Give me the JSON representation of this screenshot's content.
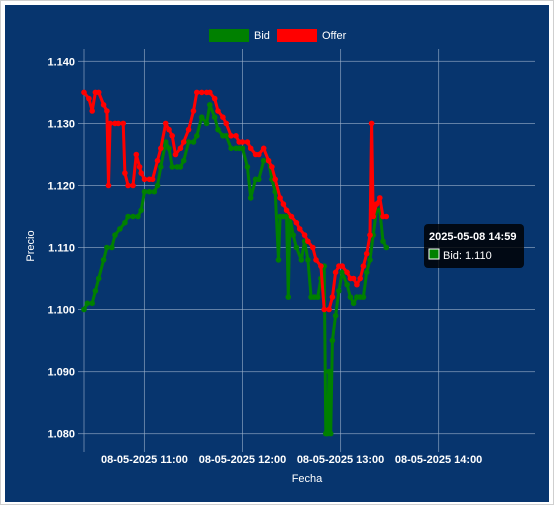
{
  "colors": {
    "background": "#07356e",
    "grid": "#9fb3cc",
    "bid": "#008000",
    "offer": "#ff0000"
  },
  "chart_data": {
    "type": "line",
    "xlabel": "Fecha",
    "ylabel": "Precio",
    "ylim": [
      1.078,
      1.142
    ],
    "y_ticks": [
      "1.080",
      "1.090",
      "1.100",
      "1.110",
      "1.120",
      "1.130",
      "1.140"
    ],
    "x_range": [
      "2025-05-08 10:23",
      "2025-05-08 14:59"
    ],
    "x_ticks": [
      {
        "label": "08-05-2025 11:00",
        "x": "2025-05-08 11:00"
      },
      {
        "label": "08-05-2025 12:00",
        "x": "2025-05-08 12:00"
      },
      {
        "label": "08-05-2025 13:00",
        "x": "2025-05-08 13:00"
      },
      {
        "label": "08-05-2025 14:00",
        "x": "2025-05-08 14:00"
      }
    ],
    "legend_position": "top",
    "grid": true,
    "series": [
      {
        "name": "Bid",
        "color": "#008000",
        "points": [
          [
            "10:23",
            1.1
          ],
          [
            "10:25",
            1.101
          ],
          [
            "10:28",
            1.101
          ],
          [
            "10:30",
            1.103
          ],
          [
            "10:32",
            1.105
          ],
          [
            "10:35",
            1.108
          ],
          [
            "10:37",
            1.11
          ],
          [
            "10:40",
            1.11
          ],
          [
            "10:42",
            1.112
          ],
          [
            "10:45",
            1.113
          ],
          [
            "10:48",
            1.114
          ],
          [
            "10:50",
            1.115
          ],
          [
            "10:53",
            1.115
          ],
          [
            "10:56",
            1.115
          ],
          [
            "10:58",
            1.116
          ],
          [
            "11:00",
            1.119
          ],
          [
            "11:03",
            1.119
          ],
          [
            "11:06",
            1.119
          ],
          [
            "11:08",
            1.12
          ],
          [
            "11:10",
            1.123
          ],
          [
            "11:13",
            1.127
          ],
          [
            "11:15",
            1.126
          ],
          [
            "11:17",
            1.123
          ],
          [
            "11:20",
            1.123
          ],
          [
            "11:22",
            1.123
          ],
          [
            "11:24",
            1.124
          ],
          [
            "11:27",
            1.127
          ],
          [
            "11:30",
            1.127
          ],
          [
            "11:32",
            1.128
          ],
          [
            "11:35",
            1.131
          ],
          [
            "11:38",
            1.13
          ],
          [
            "11:40",
            1.133
          ],
          [
            "11:43",
            1.131
          ],
          [
            "11:45",
            1.129
          ],
          [
            "11:48",
            1.128
          ],
          [
            "11:50",
            1.128
          ],
          [
            "11:53",
            1.126
          ],
          [
            "11:56",
            1.126
          ],
          [
            "11:58",
            1.126
          ],
          [
            "12:00",
            1.126
          ],
          [
            "12:03",
            1.123
          ],
          [
            "12:05",
            1.118
          ],
          [
            "12:08",
            1.121
          ],
          [
            "12:10",
            1.121
          ],
          [
            "12:13",
            1.124
          ],
          [
            "12:16",
            1.124
          ],
          [
            "12:18",
            1.121
          ],
          [
            "12:20",
            1.119
          ],
          [
            "12:22",
            1.108
          ],
          [
            "12:23",
            1.115
          ],
          [
            "12:25",
            1.115
          ],
          [
            "12:27",
            1.115
          ],
          [
            "12:28",
            1.102
          ],
          [
            "12:29",
            1.115
          ],
          [
            "12:31",
            1.112
          ],
          [
            "12:33",
            1.11
          ],
          [
            "12:36",
            1.108
          ],
          [
            "12:38",
            1.111
          ],
          [
            "12:40",
            1.108
          ],
          [
            "12:42",
            1.102
          ],
          [
            "12:44",
            1.102
          ],
          [
            "12:46",
            1.102
          ],
          [
            "12:48",
            1.105
          ],
          [
            "12:50",
            1.107
          ],
          [
            "12:51",
            1.08
          ],
          [
            "12:52",
            1.08
          ],
          [
            "12:53",
            1.09
          ],
          [
            "12:54",
            1.08
          ],
          [
            "12:55",
            1.095
          ],
          [
            "12:57",
            1.099
          ],
          [
            "12:59",
            1.103
          ],
          [
            "13:01",
            1.106
          ],
          [
            "13:04",
            1.104
          ],
          [
            "13:06",
            1.102
          ],
          [
            "13:08",
            1.101
          ],
          [
            "13:10",
            1.102
          ],
          [
            "13:12",
            1.102
          ],
          [
            "13:14",
            1.102
          ],
          [
            "13:16",
            1.106
          ],
          [
            "13:18",
            1.108
          ],
          [
            "13:20",
            1.112
          ],
          [
            "13:22",
            1.116
          ],
          [
            "13:24",
            1.116
          ],
          [
            "13:26",
            1.111
          ],
          [
            "13:28",
            1.11
          ]
        ]
      },
      {
        "name": "Offer",
        "color": "#ff0000",
        "points": [
          [
            "10:23",
            1.135
          ],
          [
            "10:26",
            1.134
          ],
          [
            "10:28",
            1.132
          ],
          [
            "10:30",
            1.135
          ],
          [
            "10:32",
            1.135
          ],
          [
            "10:35",
            1.133
          ],
          [
            "10:37",
            1.132
          ],
          [
            "10:38",
            1.12
          ],
          [
            "10:39",
            1.13
          ],
          [
            "10:42",
            1.13
          ],
          [
            "10:44",
            1.13
          ],
          [
            "10:47",
            1.13
          ],
          [
            "10:48",
            1.122
          ],
          [
            "10:50",
            1.12
          ],
          [
            "10:53",
            1.12
          ],
          [
            "10:55",
            1.125
          ],
          [
            "10:57",
            1.123
          ],
          [
            "10:58",
            1.122
          ],
          [
            "11:00",
            1.121
          ],
          [
            "11:03",
            1.121
          ],
          [
            "11:05",
            1.121
          ],
          [
            "11:08",
            1.124
          ],
          [
            "11:10",
            1.126
          ],
          [
            "11:13",
            1.13
          ],
          [
            "11:15",
            1.129
          ],
          [
            "11:17",
            1.128
          ],
          [
            "11:19",
            1.125
          ],
          [
            "11:22",
            1.126
          ],
          [
            "11:24",
            1.127
          ],
          [
            "11:27",
            1.129
          ],
          [
            "11:30",
            1.132
          ],
          [
            "11:32",
            1.135
          ],
          [
            "11:35",
            1.135
          ],
          [
            "11:38",
            1.135
          ],
          [
            "11:40",
            1.135
          ],
          [
            "11:43",
            1.134
          ],
          [
            "11:45",
            1.132
          ],
          [
            "11:48",
            1.131
          ],
          [
            "11:50",
            1.13
          ],
          [
            "11:53",
            1.128
          ],
          [
            "11:56",
            1.128
          ],
          [
            "11:58",
            1.127
          ],
          [
            "12:00",
            1.127
          ],
          [
            "12:03",
            1.127
          ],
          [
            "12:05",
            1.126
          ],
          [
            "12:08",
            1.125
          ],
          [
            "12:10",
            1.125
          ],
          [
            "12:13",
            1.126
          ],
          [
            "12:16",
            1.124
          ],
          [
            "12:18",
            1.123
          ],
          [
            "12:20",
            1.121
          ],
          [
            "12:23",
            1.118
          ],
          [
            "12:25",
            1.117
          ],
          [
            "12:27",
            1.116
          ],
          [
            "12:30",
            1.115
          ],
          [
            "12:33",
            1.114
          ],
          [
            "12:35",
            1.113
          ],
          [
            "12:38",
            1.112
          ],
          [
            "12:40",
            1.111
          ],
          [
            "12:43",
            1.11
          ],
          [
            "12:45",
            1.108
          ],
          [
            "12:48",
            1.107
          ],
          [
            "12:50",
            1.1
          ],
          [
            "12:53",
            1.1
          ],
          [
            "12:55",
            1.102
          ],
          [
            "12:57",
            1.106
          ],
          [
            "12:59",
            1.107
          ],
          [
            "13:01",
            1.107
          ],
          [
            "13:04",
            1.106
          ],
          [
            "13:06",
            1.105
          ],
          [
            "13:08",
            1.105
          ],
          [
            "13:10",
            1.104
          ],
          [
            "13:12",
            1.105
          ],
          [
            "13:14",
            1.107
          ],
          [
            "13:16",
            1.109
          ],
          [
            "13:18",
            1.112
          ],
          [
            "13:19",
            1.13
          ],
          [
            "13:20",
            1.115
          ],
          [
            "13:22",
            1.117
          ],
          [
            "13:24",
            1.118
          ],
          [
            "13:26",
            1.115
          ],
          [
            "13:28",
            1.115
          ]
        ]
      }
    ],
    "tooltip": {
      "title": "2025-05-08 14:59",
      "label": "Bid: 1.110",
      "series": "Bid"
    }
  }
}
